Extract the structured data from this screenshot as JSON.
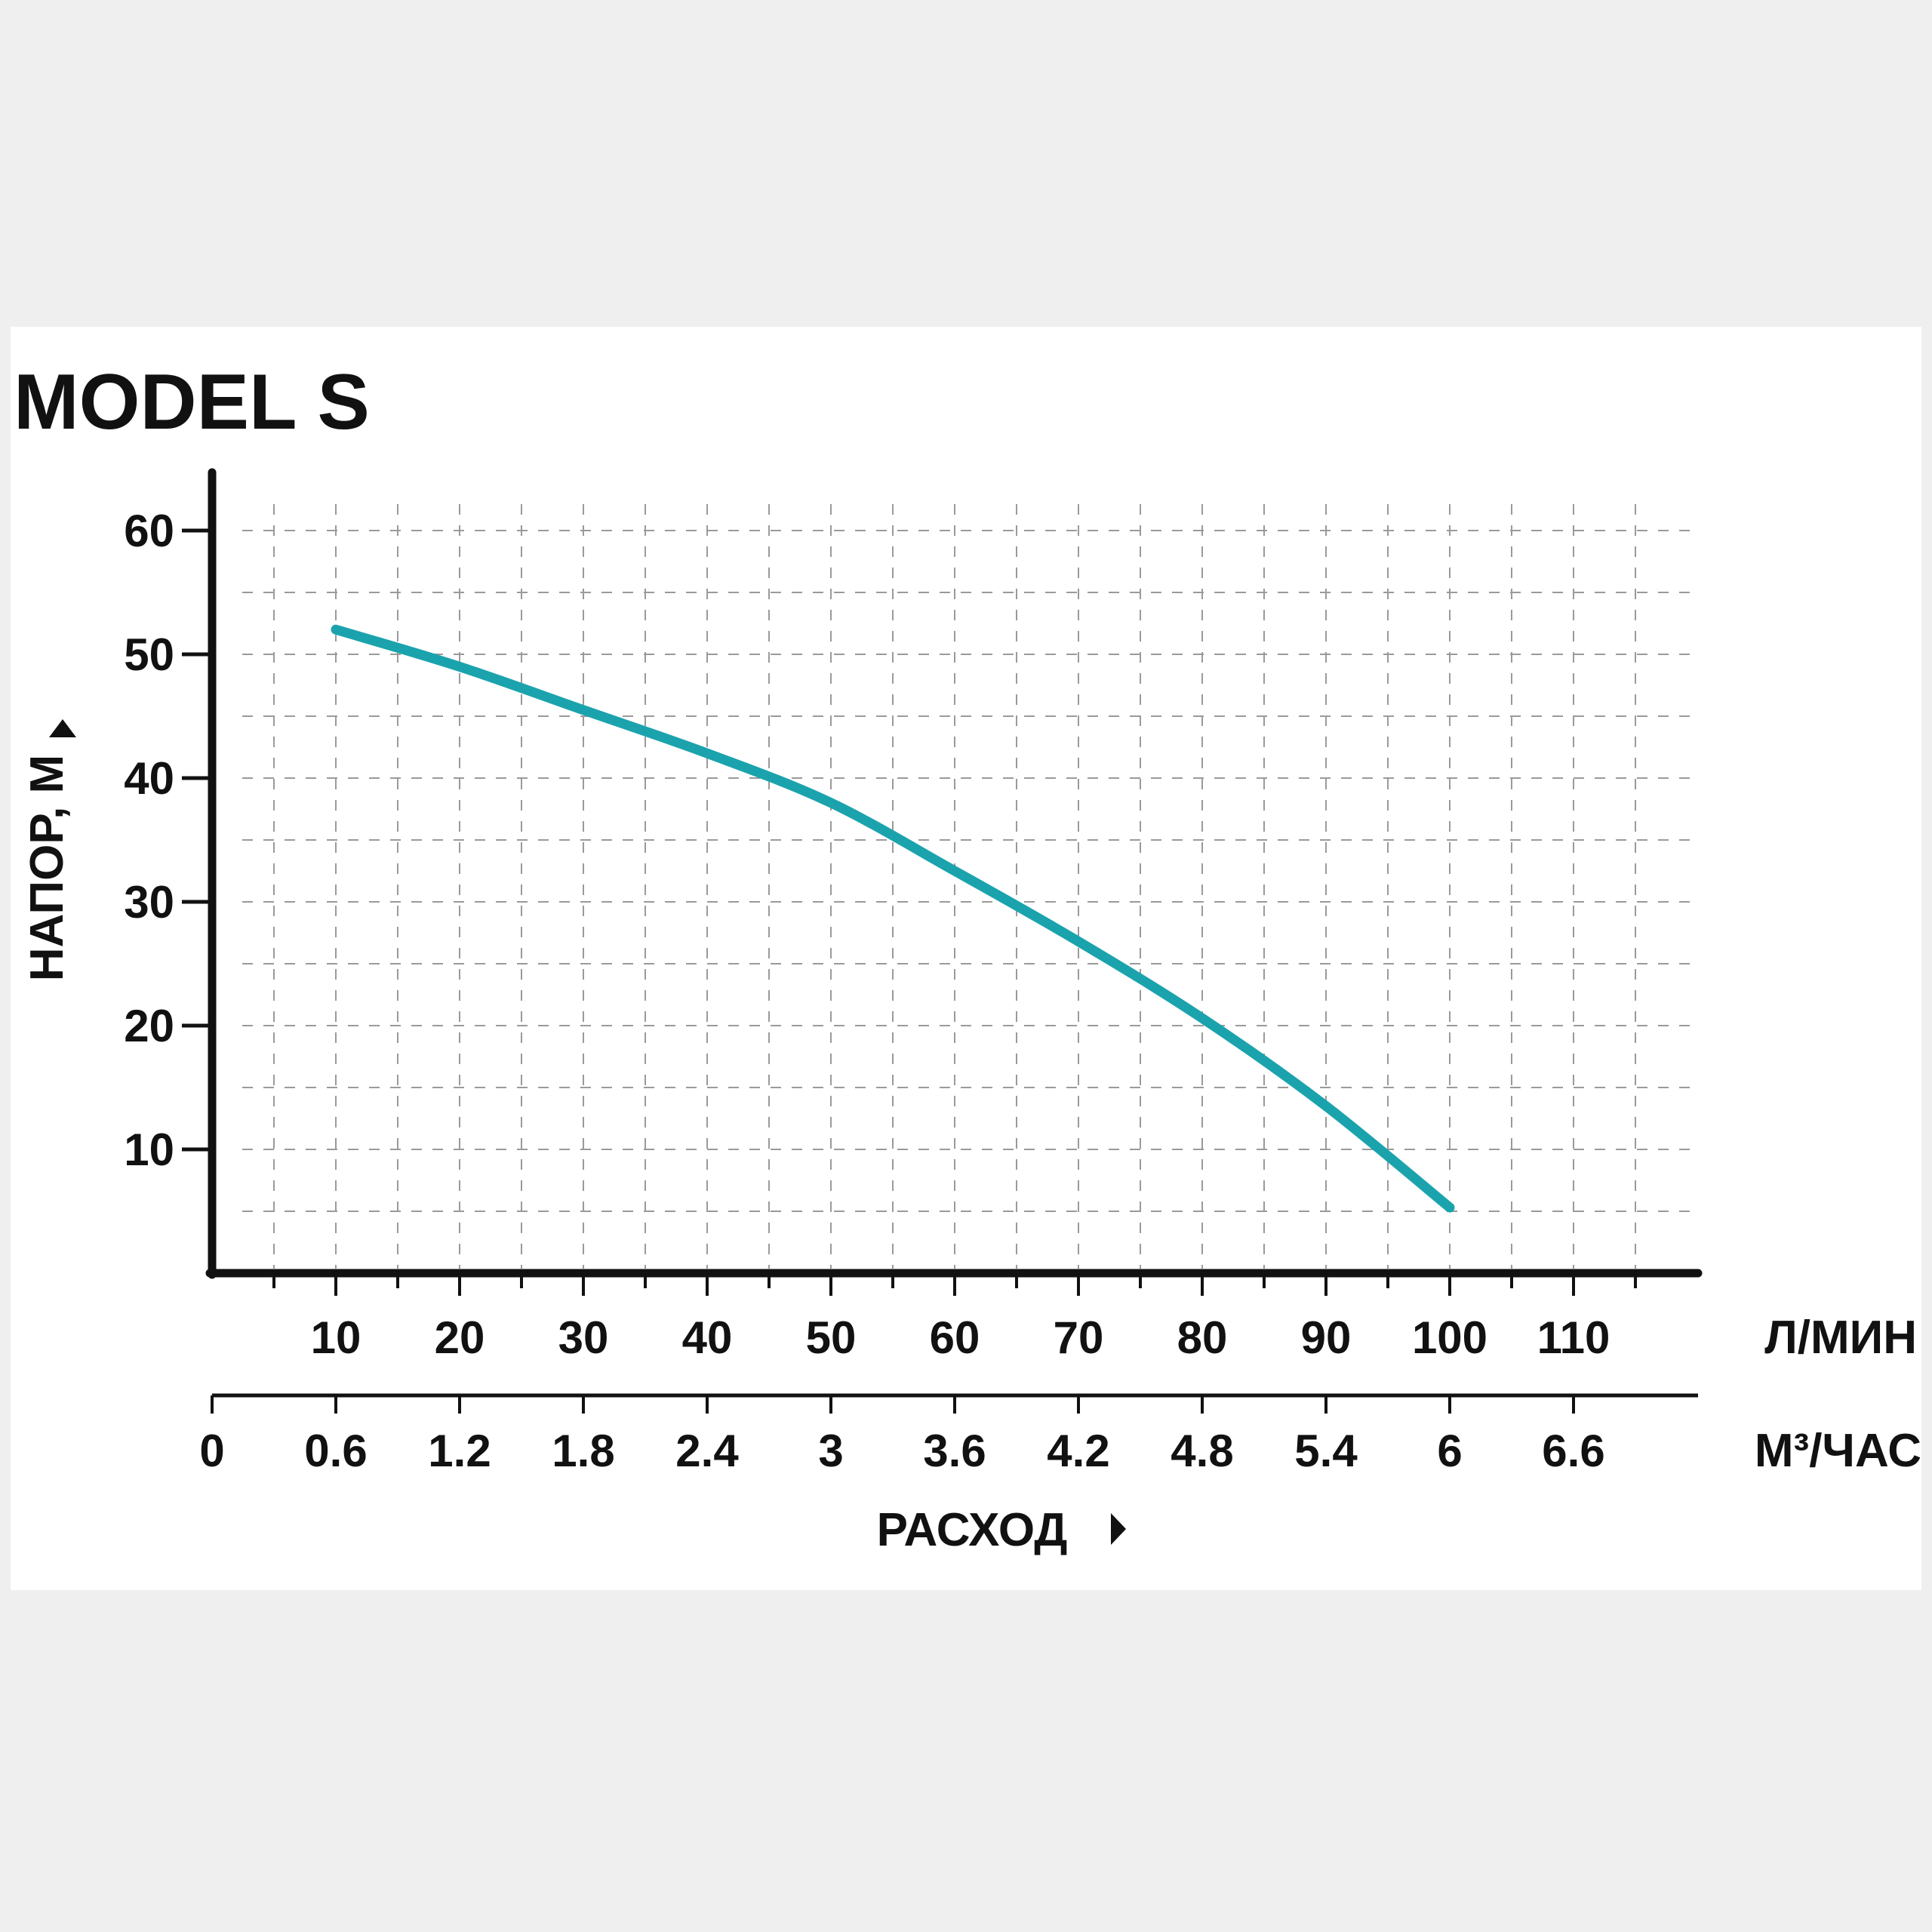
{
  "chart_data": {
    "type": "line",
    "title": "MODEL S",
    "ylabel": "НАПОР, М",
    "xlabel": "РАСХОД",
    "y_ticks": [
      10,
      20,
      30,
      40,
      50,
      60
    ],
    "ylim": [
      0,
      65
    ],
    "x_primary": {
      "unit": "Л/МИН",
      "ticks": [
        "10",
        "20",
        "30",
        "40",
        "50",
        "60",
        "70",
        "80",
        "90",
        "100",
        "110"
      ],
      "xlim": [
        0,
        120
      ]
    },
    "x_secondary": {
      "unit": "М³/ЧАС",
      "ticks": [
        "0",
        "0.6",
        "1.2",
        "1.8",
        "2.4",
        "3",
        "3.6",
        "4.2",
        "4.8",
        "5.4",
        "6",
        "6.6"
      ]
    },
    "grid": true,
    "series": [
      {
        "x": [
          10,
          20,
          30,
          40,
          50,
          60,
          70,
          80,
          90,
          100
        ],
        "y": [
          52,
          49,
          45.5,
          42,
          38,
          32.5,
          26.8,
          20.6,
          13.5,
          5.3
        ]
      }
    ],
    "colors": {
      "curve": "#1ba3ad",
      "axis": "#111111",
      "grid": "#9a9a9a"
    }
  }
}
